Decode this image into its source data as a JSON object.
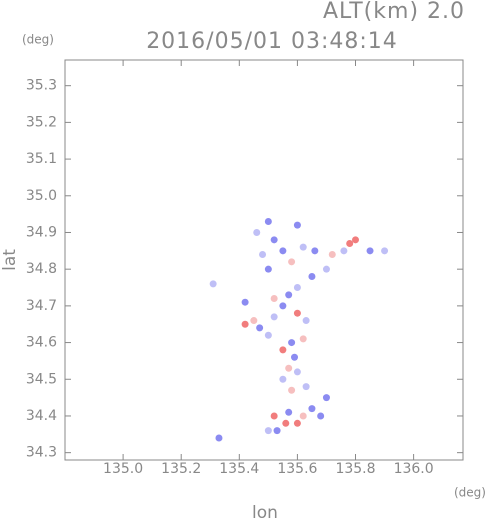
{
  "chart_data": {
    "type": "scatter",
    "title": "2016/05/01 03:48:14",
    "subtitle": "ALT(km) 2.0",
    "x_unit": "(deg)",
    "y_unit": "(deg)",
    "x_label": "lon",
    "y_label": "lat",
    "xlim": [
      134.8,
      136.17
    ],
    "ylim": [
      34.28,
      35.37
    ],
    "xticks": [
      {
        "value": 135.0,
        "label": "135.0"
      },
      135.2,
      135.4,
      135.6,
      135.8,
      {
        "value": 136.0,
        "label": "136.0"
      }
    ],
    "yticks": [
      34.3,
      34.4,
      34.5,
      34.6,
      34.7,
      34.8,
      34.9,
      {
        "value": 35.0,
        "label": "35.0"
      },
      35.1,
      35.2,
      35.3
    ],
    "x": [
      135.33,
      135.5,
      135.53,
      135.56,
      135.6,
      135.62,
      135.57,
      135.52,
      135.68,
      135.65,
      135.7,
      135.63,
      135.58,
      135.55,
      135.57,
      135.59,
      135.6,
      135.55,
      135.58,
      135.62,
      135.5,
      135.47,
      135.45,
      135.42,
      135.52,
      135.55,
      135.6,
      135.63,
      135.52,
      135.57,
      135.6,
      135.65,
      135.7,
      135.5,
      135.48,
      135.55,
      135.58,
      135.62,
      135.66,
      135.72,
      135.78,
      135.8,
      135.76,
      135.85,
      135.9,
      135.5,
      135.46,
      135.52,
      135.6,
      135.31,
      135.42
    ],
    "values": [
      34.34,
      34.36,
      34.36,
      34.38,
      34.38,
      34.4,
      34.41,
      34.4,
      34.4,
      34.42,
      34.45,
      34.48,
      34.47,
      34.5,
      34.53,
      34.56,
      34.52,
      34.58,
      34.6,
      34.61,
      34.62,
      34.64,
      34.66,
      34.65,
      34.67,
      34.7,
      34.68,
      34.66,
      34.72,
      34.73,
      34.75,
      34.78,
      34.8,
      34.8,
      34.84,
      34.85,
      34.82,
      34.86,
      34.85,
      34.84,
      34.87,
      34.88,
      34.85,
      34.85,
      34.85,
      34.93,
      34.9,
      34.88,
      34.92,
      34.76,
      34.71
    ],
    "colors": [
      "#7777ee",
      "#b4b4f4",
      "#7777ee",
      "#ee6666",
      "#ee6666",
      "#f4b4b4",
      "#7777ee",
      "#ee6666",
      "#7777ee",
      "#7777ee",
      "#7777ee",
      "#b4b4f4",
      "#f4b4b4",
      "#b4b4f4",
      "#f4b4b4",
      "#7777ee",
      "#b4b4f4",
      "#ee6666",
      "#7777ee",
      "#f4b4b4",
      "#b4b4f4",
      "#7777ee",
      "#f4b4b4",
      "#ee6666",
      "#b4b4f4",
      "#7777ee",
      "#ee6666",
      "#b4b4f4",
      "#f4b4b4",
      "#7777ee",
      "#b4b4f4",
      "#7777ee",
      "#b4b4f4",
      "#7777ee",
      "#b4b4f4",
      "#7777ee",
      "#f4b4b4",
      "#b4b4f4",
      "#7777ee",
      "#f4b4b4",
      "#ee6666",
      "#ee6666",
      "#b4b4f4",
      "#7777ee",
      "#b4b4f4",
      "#7777ee",
      "#b4b4f4",
      "#7777ee",
      "#7777ee",
      "#b4b4f4",
      "#7777ee"
    ]
  }
}
